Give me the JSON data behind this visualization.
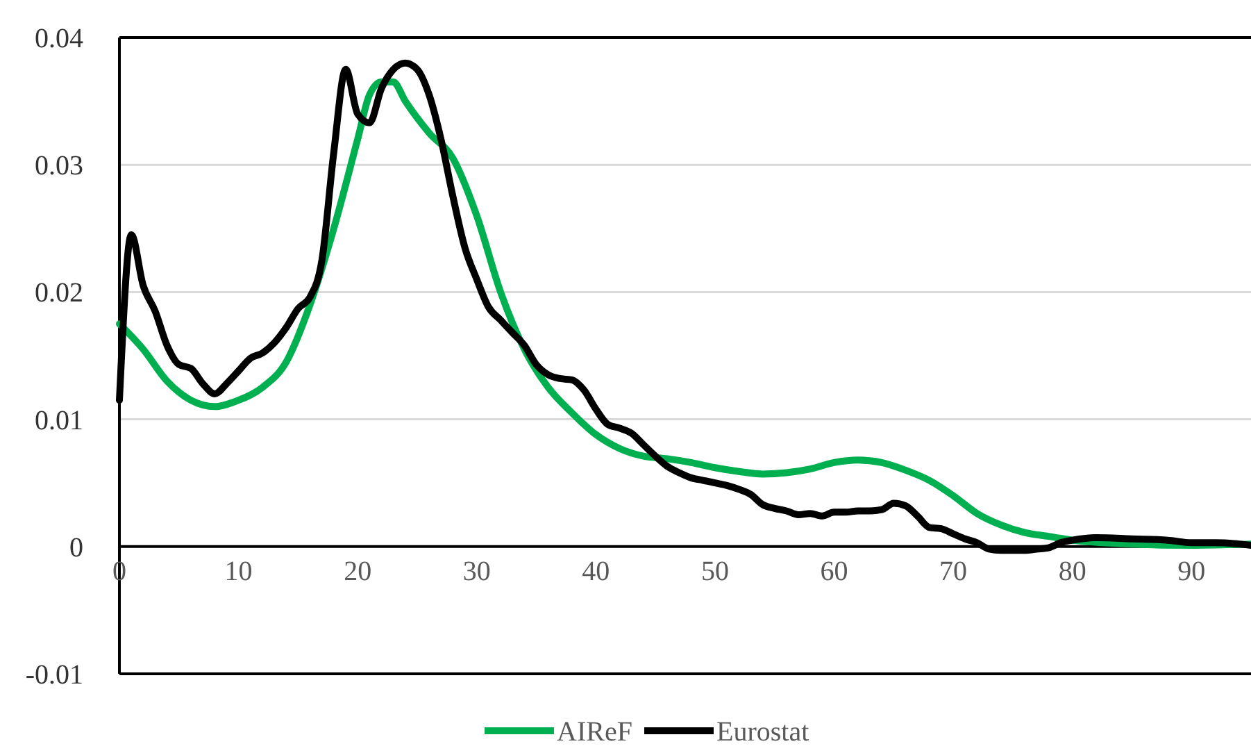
{
  "chart_data": {
    "type": "line",
    "xlim": [
      0,
      95
    ],
    "xticks": [
      0,
      10,
      20,
      30,
      40,
      50,
      60,
      70,
      80,
      90
    ],
    "ylim": [
      -0.01,
      0.04
    ],
    "yticks": [
      -0.01,
      0,
      0.01,
      0.02,
      0.03,
      0.04
    ],
    "grid": "y",
    "legend": "bottom",
    "marker": "none",
    "line_style": "solid",
    "series": [
      {
        "name": "AIReF",
        "color": "#00b050",
        "x": [
          0,
          2,
          4,
          6,
          8,
          10,
          12,
          14,
          16,
          18,
          20,
          21,
          22,
          23,
          24,
          26,
          28,
          30,
          32,
          34,
          36,
          38,
          40,
          42,
          44,
          46,
          48,
          50,
          52,
          54,
          56,
          58,
          60,
          62,
          64,
          66,
          68,
          70,
          72,
          74,
          76,
          78,
          80,
          85,
          90,
          95
        ],
        "values": [
          0.0175,
          0.0155,
          0.013,
          0.0115,
          0.011,
          0.0115,
          0.0125,
          0.0145,
          0.019,
          0.025,
          0.032,
          0.0355,
          0.0365,
          0.0365,
          0.035,
          0.0325,
          0.0305,
          0.026,
          0.02,
          0.0155,
          0.0125,
          0.0105,
          0.0088,
          0.0077,
          0.0071,
          0.0069,
          0.0066,
          0.0062,
          0.0059,
          0.0057,
          0.0058,
          0.0061,
          0.0066,
          0.0068,
          0.0066,
          0.006,
          0.0052,
          0.004,
          0.0026,
          0.0017,
          0.0011,
          0.0008,
          0.0005,
          0.0002,
          0.0001,
          0.0002
        ]
      },
      {
        "name": "Eurostat",
        "color": "#000000",
        "x": [
          0,
          1,
          2,
          3,
          4,
          5,
          6,
          7,
          8,
          9,
          10,
          11,
          12,
          13,
          14,
          15,
          16,
          17,
          18,
          19,
          20,
          21,
          22,
          23,
          24,
          25,
          26,
          27,
          28,
          29,
          30,
          31,
          32,
          33,
          34,
          35,
          36,
          37,
          38,
          39,
          40,
          41,
          42,
          43,
          44,
          45,
          46,
          47,
          48,
          49,
          50,
          51,
          52,
          53,
          54,
          55,
          56,
          57,
          58,
          59,
          60,
          61,
          62,
          63,
          64,
          65,
          66,
          67,
          68,
          69,
          70,
          71,
          72,
          73,
          74,
          75,
          76,
          77,
          78,
          79,
          80,
          82,
          85,
          88,
          90,
          92,
          94,
          95
        ],
        "values": [
          0.0115,
          0.0245,
          0.0205,
          0.0185,
          0.0158,
          0.0143,
          0.014,
          0.0128,
          0.012,
          0.0128,
          0.0138,
          0.0148,
          0.0152,
          0.016,
          0.0172,
          0.0187,
          0.0196,
          0.0225,
          0.031,
          0.0375,
          0.034,
          0.0333,
          0.036,
          0.0375,
          0.038,
          0.0375,
          0.0355,
          0.032,
          0.0275,
          0.0235,
          0.021,
          0.0188,
          0.0178,
          0.0168,
          0.0158,
          0.0143,
          0.0135,
          0.0132,
          0.0131,
          0.0123,
          0.0108,
          0.0096,
          0.0093,
          0.0089,
          0.008,
          0.0071,
          0.0063,
          0.0058,
          0.0054,
          0.0052,
          0.005,
          0.0048,
          0.0045,
          0.0041,
          0.0033,
          0.003,
          0.0028,
          0.0025,
          0.0026,
          0.0024,
          0.0027,
          0.0027,
          0.0028,
          0.0028,
          0.0029,
          0.0034,
          0.0032,
          0.0024,
          0.0015,
          0.0014,
          0.001,
          0.0006,
          0.0003,
          -0.0002,
          -0.0003,
          -0.0003,
          -0.0003,
          -0.0002,
          -0.0001,
          0.0003,
          0.0005,
          0.0007,
          0.0006,
          0.0005,
          0.0003,
          0.0003,
          0.0002,
          0.0001
        ]
      }
    ]
  }
}
